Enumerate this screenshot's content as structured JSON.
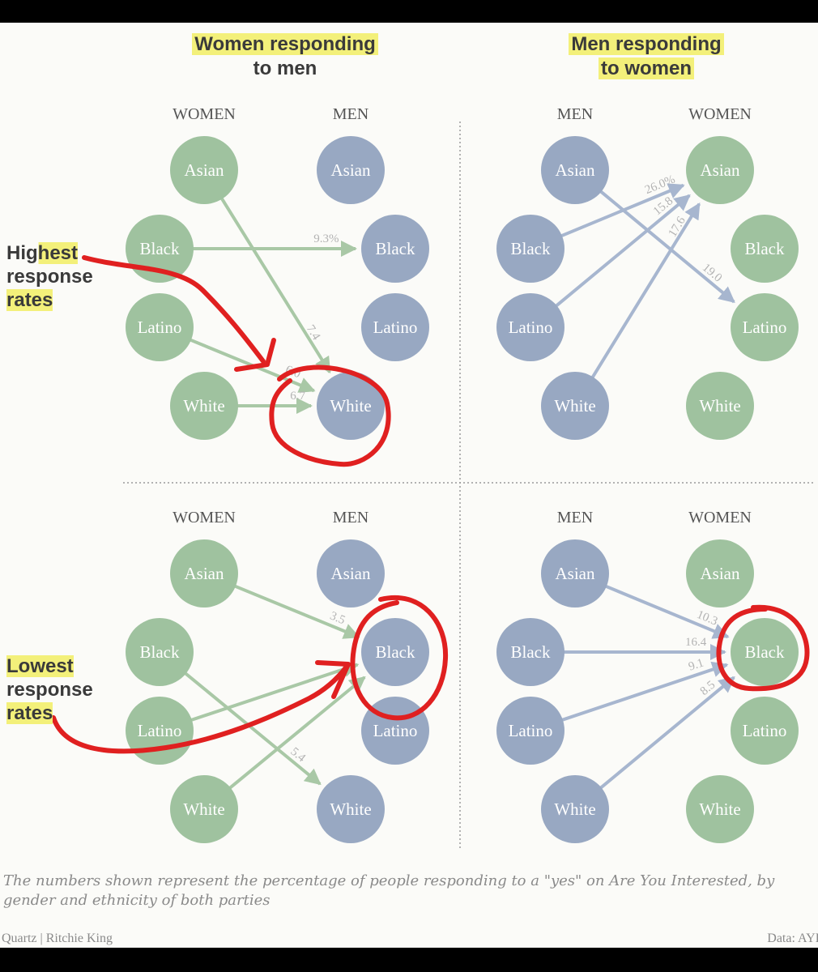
{
  "headers": {
    "left_line1": "Women responding",
    "left_line2": "to men",
    "right_line1": "Men responding",
    "right_line2": "to women"
  },
  "annotations": {
    "highest": [
      "Highest",
      "response",
      "rates"
    ],
    "lowest": [
      "Lowest",
      "response",
      "rates"
    ]
  },
  "caption": "The numbers shown represent the percentage of people responding to a \"yes\" on Are You Interested, by gender and ethnicity of both parties",
  "credit_left": "Quartz | Ritchie King",
  "credit_right": "Data: AYI",
  "colors": {
    "women_node": "#9fc29f",
    "men_node": "#98a8c2",
    "women_arrow": "#a9c8a6",
    "men_arrow": "#a7b6cf",
    "value_label": "#b3b3b3",
    "highlight": "#f3f07a",
    "red_marker": "#e02020"
  },
  "panels": [
    {
      "id": "top-left",
      "left_header": "WOMEN",
      "right_header": "MEN",
      "left_kind": "women",
      "right_kind": "men",
      "arrow_kind": "women",
      "nodes_left": [
        "Asian",
        "Black",
        "Latino",
        "White"
      ],
      "nodes_right": [
        "Asian",
        "Black",
        "Latino",
        "White"
      ],
      "edges": [
        {
          "from": "Asian",
          "to": "White",
          "label": "7.4"
        },
        {
          "from": "Black",
          "to": "Black",
          "label": "9.3%"
        },
        {
          "from": "Latino",
          "to": "White",
          "label": "6.0"
        },
        {
          "from": "White",
          "to": "White",
          "label": "6.7"
        }
      ]
    },
    {
      "id": "top-right",
      "left_header": "MEN",
      "right_header": "WOMEN",
      "left_kind": "men",
      "right_kind": "women",
      "arrow_kind": "men",
      "nodes_left": [
        "Asian",
        "Black",
        "Latino",
        "White"
      ],
      "nodes_right": [
        "Asian",
        "Black",
        "Latino",
        "White"
      ],
      "edges": [
        {
          "from": "Black",
          "to": "Asian",
          "label": "26.0%"
        },
        {
          "from": "Latino",
          "to": "Asian",
          "label": "15.8"
        },
        {
          "from": "White",
          "to": "Asian",
          "label": "17.6"
        },
        {
          "from": "Asian",
          "to": "Latino",
          "label": "19.0"
        }
      ]
    },
    {
      "id": "bottom-left",
      "left_header": "WOMEN",
      "right_header": "MEN",
      "left_kind": "women",
      "right_kind": "men",
      "arrow_kind": "women",
      "nodes_left": [
        "Asian",
        "Black",
        "Latino",
        "White"
      ],
      "nodes_right": [
        "Asian",
        "Black",
        "Latino",
        "White"
      ],
      "edges": [
        {
          "from": "Asian",
          "to": "Black",
          "label": "3.5"
        },
        {
          "from": "Latino",
          "to": "Black",
          "label": ""
        },
        {
          "from": "White",
          "to": "Black",
          "label": ""
        },
        {
          "from": "Black",
          "to": "White",
          "label": "5.4"
        }
      ]
    },
    {
      "id": "bottom-right",
      "left_header": "MEN",
      "right_header": "WOMEN",
      "left_kind": "men",
      "right_kind": "women",
      "arrow_kind": "men",
      "nodes_left": [
        "Asian",
        "Black",
        "Latino",
        "White"
      ],
      "nodes_right": [
        "Asian",
        "Black",
        "Latino",
        "White"
      ],
      "edges": [
        {
          "from": "Asian",
          "to": "Black",
          "label": "10.3"
        },
        {
          "from": "Black",
          "to": "Black",
          "label": "16.4"
        },
        {
          "from": "Latino",
          "to": "Black",
          "label": "9.1"
        },
        {
          "from": "White",
          "to": "Black",
          "label": "8.5"
        }
      ]
    }
  ]
}
